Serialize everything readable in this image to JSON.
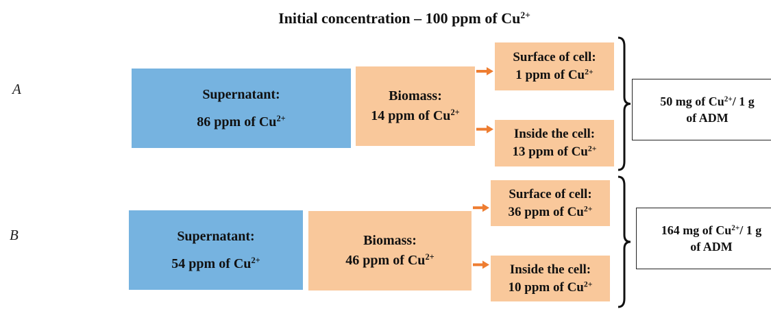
{
  "title": {
    "text": "Initial concentration – 100 ppm of Cu",
    "charge": "2+"
  },
  "rows": [
    {
      "label": "A",
      "supernatant": {
        "label": "Supernatant:",
        "amount": "86 ppm of Cu",
        "charge": "2+"
      },
      "biomass": {
        "label": "Biomass:",
        "amount": "14 ppm of Cu",
        "charge": "2+"
      },
      "surface": {
        "label": "Surface of cell:",
        "amount": "1 ppm of Cu",
        "charge": "2+"
      },
      "inside": {
        "label": "Inside the cell:",
        "amount": "13 ppm of Cu",
        "charge": "2+"
      },
      "result": {
        "amount": "50 mg of Cu",
        "charge": "2+",
        "rest": "/ 1 g",
        "line2": "of ADM"
      }
    },
    {
      "label": "B",
      "supernatant": {
        "label": "Supernatant:",
        "amount": "54 ppm of Cu",
        "charge": "2+"
      },
      "biomass": {
        "label": "Biomass:",
        "amount": "46 ppm of Cu",
        "charge": "2+"
      },
      "surface": {
        "label": "Surface of cell:",
        "amount": "36 ppm of Cu",
        "charge": "2+"
      },
      "inside": {
        "label": "Inside the cell:",
        "amount": "10 ppm of Cu",
        "charge": "2+"
      },
      "result": {
        "amount": "164 mg of Cu",
        "charge": "2+",
        "rest": "/ 1 g",
        "line2": "of ADM"
      }
    }
  ]
}
